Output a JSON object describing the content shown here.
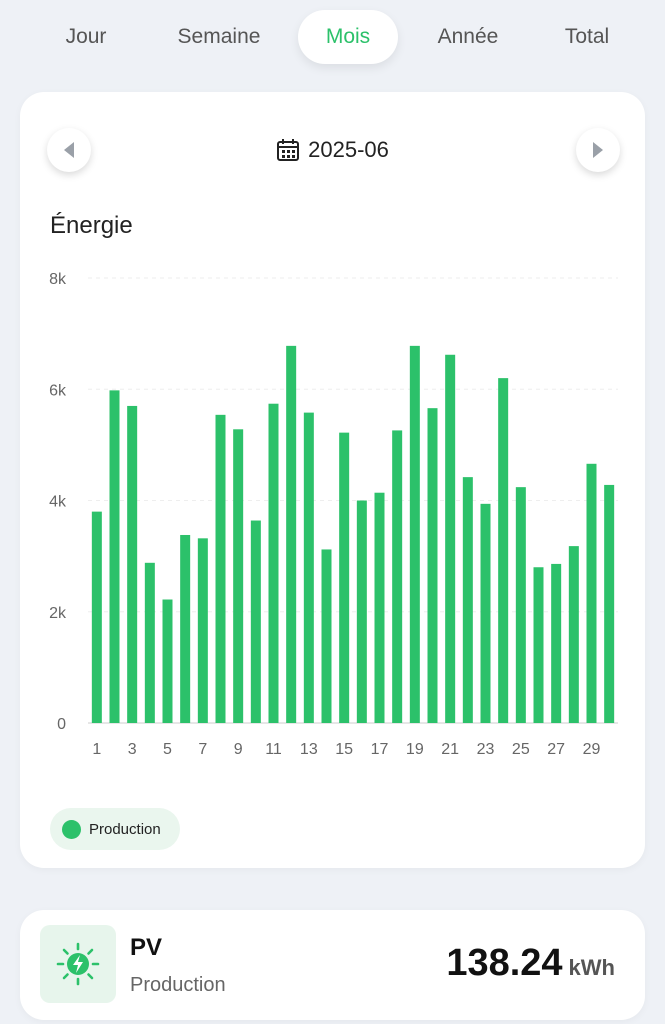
{
  "tabs": [
    {
      "label": "Jour"
    },
    {
      "label": "Semaine"
    },
    {
      "label": "Mois"
    },
    {
      "label": "Année"
    },
    {
      "label": "Total"
    }
  ],
  "active_tab": "Mois",
  "date_nav": {
    "date": "2025-06",
    "icons": [
      "chevron-left-icon",
      "calendar-icon",
      "chevron-right-icon"
    ]
  },
  "chart_title": "Énergie",
  "legend": {
    "label": "Production",
    "color": "#2cc16a"
  },
  "chart_data": {
    "type": "bar",
    "title": "Énergie",
    "xlabel": "",
    "ylabel": "",
    "ylim": [
      0,
      8000
    ],
    "y_ticks": [
      "0",
      "2k",
      "4k",
      "6k",
      "8k"
    ],
    "y_tick_values": [
      0,
      2000,
      4000,
      6000,
      8000
    ],
    "x_tick_labels": [
      "1",
      "3",
      "5",
      "7",
      "9",
      "11",
      "13",
      "15",
      "17",
      "19",
      "21",
      "23",
      "25",
      "27",
      "29"
    ],
    "categories": [
      1,
      2,
      3,
      4,
      5,
      6,
      7,
      8,
      9,
      10,
      11,
      12,
      13,
      14,
      15,
      16,
      17,
      18,
      19,
      20,
      21,
      22,
      23,
      24,
      25,
      26,
      27,
      28,
      29,
      30
    ],
    "series": [
      {
        "name": "Production",
        "color": "#2cc16a",
        "values": [
          3800,
          5980,
          5700,
          2880,
          2220,
          3380,
          3320,
          5540,
          5280,
          3640,
          5740,
          6780,
          5580,
          3120,
          5220,
          4000,
          4140,
          5260,
          6780,
          5660,
          6620,
          4420,
          3940,
          6200,
          4240,
          2800,
          2860,
          3180,
          4660,
          4280
        ]
      }
    ],
    "grid": true,
    "legend_position": "bottom-left"
  },
  "pv": {
    "title": "PV",
    "subtitle": "Production",
    "value": "138.24",
    "unit": "kWh",
    "icon": "solar-energy-icon",
    "accent": "#2cc16a"
  }
}
